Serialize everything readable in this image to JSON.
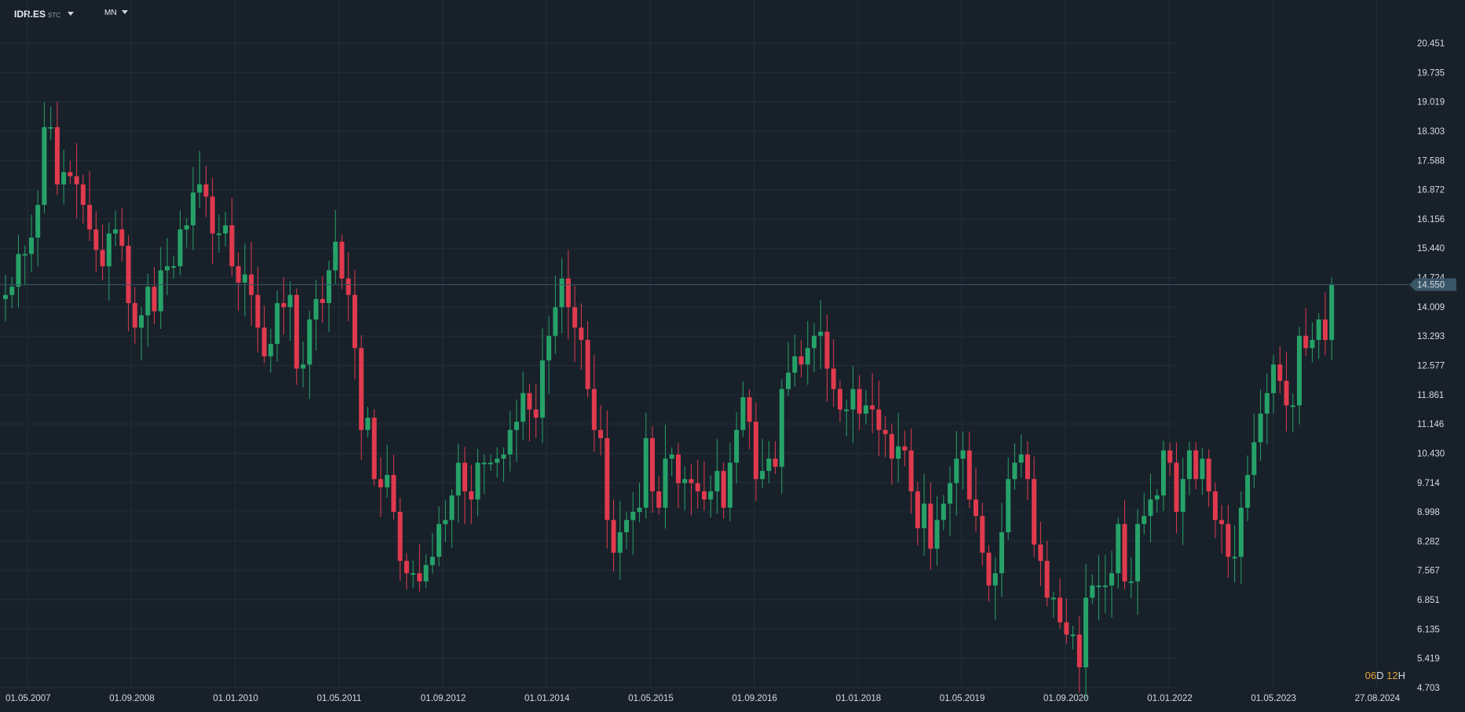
{
  "toolbar": {
    "symbol": "IDR.ES",
    "exchange": "STC",
    "timeframe": "MN"
  },
  "countdown": {
    "days": "06",
    "days_unit": "D",
    "hours": "12",
    "hours_unit": "H"
  },
  "colors": {
    "background": "#18212a",
    "grid": "#232e38",
    "up": "#26a269",
    "down": "#e03a4e",
    "price_line": "#3a5568"
  },
  "chart_data": {
    "type": "candlestick",
    "y_axis_labels": [
      "20.451",
      "19.735",
      "19.019",
      "18.303",
      "17.588",
      "16.872",
      "16.156",
      "15.440",
      "14.724",
      "14.009",
      "13.293",
      "12.577",
      "11.861",
      "11.146",
      "10.430",
      "9.714",
      "8.998",
      "8.282",
      "7.567",
      "6.851",
      "6.135",
      "5.419",
      "4.703"
    ],
    "ylim": [
      4.703,
      20.451
    ],
    "x_axis_labels": [
      "01.05.2007",
      "01.09.2008",
      "01.01.2010",
      "01.05.2011",
      "01.09.2012",
      "01.01.2014",
      "01.05.2015",
      "01.09.2016",
      "01.01.2018",
      "01.05.2019",
      "01.09.2020",
      "01.01.2022",
      "01.05.2023",
      "27.08.2024"
    ],
    "x_start": "2007-05",
    "last_price": "14.550",
    "last_price_value": 14.55,
    "closes": [
      14.3,
      14.5,
      15.3,
      15.3,
      15.7,
      16.5,
      18.4,
      18.4,
      17.0,
      17.3,
      17.2,
      17.0,
      16.5,
      15.9,
      15.4,
      15.0,
      15.8,
      15.9,
      15.5,
      14.1,
      13.5,
      13.8,
      14.5,
      13.9,
      14.9,
      15.0,
      15.0,
      15.9,
      16.0,
      16.8,
      17.0,
      16.7,
      15.8,
      15.8,
      16.0,
      15.0,
      14.6,
      14.8,
      14.3,
      13.5,
      12.8,
      13.1,
      14.1,
      14.0,
      14.3,
      12.5,
      12.6,
      13.7,
      14.2,
      14.1,
      14.9,
      15.6,
      14.7,
      14.3,
      13.0,
      11.0,
      11.3,
      9.8,
      9.6,
      9.9,
      9.0,
      7.8,
      7.5,
      7.5,
      7.3,
      7.7,
      7.9,
      8.7,
      8.8,
      9.4,
      10.2,
      9.5,
      9.3,
      10.2,
      10.2,
      10.2,
      10.3,
      10.4,
      11.0,
      11.2,
      11.9,
      11.5,
      11.3,
      12.7,
      13.3,
      14.0,
      14.7,
      14.0,
      13.5,
      13.2,
      12.0,
      11.0,
      10.8,
      8.8,
      8.0,
      8.5,
      8.8,
      9.0,
      9.1,
      10.8,
      9.5,
      9.1,
      10.3,
      10.4,
      9.7,
      9.8,
      9.7,
      9.5,
      9.3,
      9.5,
      10.0,
      9.1,
      10.2,
      11.0,
      11.8,
      11.2,
      9.8,
      10.0,
      10.3,
      10.1,
      12.0,
      12.4,
      12.8,
      12.6,
      13.0,
      13.3,
      13.4,
      12.5,
      12.0,
      11.5,
      11.5,
      12.0,
      11.4,
      11.6,
      11.5,
      11.0,
      10.9,
      10.3,
      10.6,
      10.5,
      9.5,
      8.6,
      9.2,
      8.1,
      8.8,
      9.2,
      9.7,
      10.3,
      10.5,
      9.3,
      8.9,
      8.0,
      7.2,
      7.5,
      8.5,
      9.8,
      10.2,
      10.4,
      9.8,
      8.2,
      7.8,
      6.9,
      6.9,
      6.3,
      6.0,
      6.0,
      5.2,
      6.9,
      7.2,
      7.2,
      7.2,
      7.5,
      8.7,
      7.3,
      7.3,
      8.7,
      8.9,
      9.3,
      9.4,
      10.5,
      10.2,
      9.0,
      9.8,
      10.5,
      9.8,
      10.3,
      9.5,
      8.8,
      8.7,
      7.9,
      7.9,
      9.1,
      9.9,
      10.7,
      11.4,
      11.9,
      12.6,
      12.2,
      11.6,
      11.6,
      13.3,
      13.0,
      13.2,
      13.7,
      13.2,
      14.55
    ],
    "opens": [
      14.2,
      14.3,
      14.5,
      15.3,
      15.3,
      15.7,
      16.5,
      18.4,
      18.4,
      17.0,
      17.3,
      17.2,
      17.0,
      16.5,
      15.9,
      15.4,
      15.0,
      15.8,
      15.9,
      15.5,
      14.1,
      13.5,
      13.8,
      14.5,
      13.9,
      14.9,
      15.0,
      15.0,
      15.9,
      16.0,
      16.8,
      17.0,
      16.7,
      15.8,
      15.8,
      16.0,
      15.0,
      14.6,
      14.8,
      14.3,
      13.5,
      12.8,
      13.1,
      14.1,
      14.0,
      14.3,
      12.5,
      12.6,
      13.7,
      14.2,
      14.1,
      14.9,
      15.6,
      14.7,
      14.3,
      13.0,
      11.0,
      11.3,
      9.8,
      9.6,
      9.9,
      9.0,
      7.8,
      7.5,
      7.5,
      7.3,
      7.7,
      7.9,
      8.7,
      8.8,
      9.4,
      10.2,
      9.5,
      9.3,
      10.2,
      10.2,
      10.2,
      10.3,
      10.4,
      11.0,
      11.2,
      11.9,
      11.5,
      11.3,
      12.7,
      13.3,
      14.0,
      14.7,
      14.0,
      13.5,
      13.2,
      12.0,
      11.0,
      10.8,
      8.8,
      8.0,
      8.5,
      8.8,
      9.0,
      9.1,
      10.8,
      9.5,
      9.1,
      10.3,
      10.4,
      9.7,
      9.8,
      9.7,
      9.5,
      9.3,
      9.5,
      10.0,
      9.1,
      10.2,
      11.0,
      11.8,
      11.2,
      9.8,
      10.0,
      10.3,
      10.1,
      12.0,
      12.4,
      12.8,
      12.6,
      13.0,
      13.3,
      13.4,
      12.5,
      12.0,
      11.5,
      11.5,
      12.0,
      11.4,
      11.6,
      11.5,
      11.0,
      10.9,
      10.3,
      10.6,
      10.5,
      9.5,
      8.6,
      9.2,
      8.1,
      8.8,
      9.2,
      9.7,
      10.3,
      10.5,
      9.3,
      8.9,
      8.0,
      7.2,
      7.5,
      8.5,
      9.8,
      10.2,
      10.4,
      9.8,
      8.2,
      7.8,
      6.9,
      6.9,
      6.3,
      6.0,
      6.0,
      5.2,
      6.9,
      7.2,
      7.2,
      7.2,
      7.5,
      8.7,
      7.3,
      7.3,
      8.7,
      8.9,
      9.3,
      9.4,
      10.5,
      10.2,
      9.0,
      9.8,
      10.5,
      9.8,
      10.3,
      9.5,
      8.8,
      8.7,
      7.9,
      7.9,
      9.1,
      9.9,
      10.7,
      11.4,
      11.9,
      12.6,
      12.2,
      11.6,
      11.6,
      13.3,
      13.0,
      13.2,
      13.7,
      13.2
    ]
  }
}
